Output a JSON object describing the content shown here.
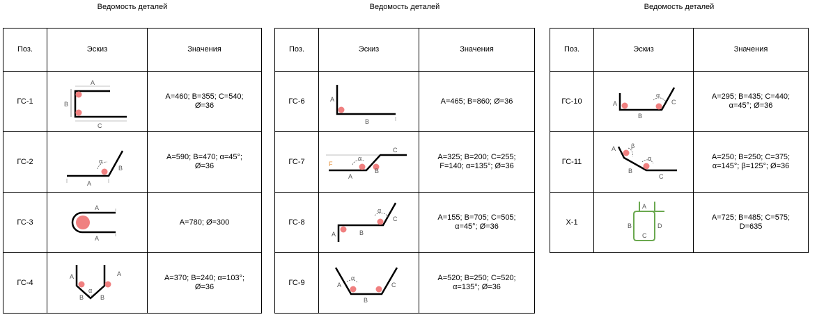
{
  "tables": [
    {
      "caption": "Ведомость деталей",
      "headers": {
        "pos": "Поз.",
        "sketch": "Эскиз",
        "values": "Значения"
      },
      "rows": [
        {
          "pos": "ГС-1",
          "value_lines": [
            "A=460;  B=355;  C=540;",
            "Ø=36"
          ],
          "labels": [
            "A",
            "B",
            "C"
          ]
        },
        {
          "pos": "ГС-2",
          "value_lines": [
            "A=590;  B=470;  α=45°;",
            "Ø=36"
          ],
          "labels": [
            "A",
            "B",
            "α"
          ]
        },
        {
          "pos": "ГС-3",
          "value_lines": [
            "A=780;  Ø=300"
          ],
          "labels": [
            "A",
            "A"
          ]
        },
        {
          "pos": "ГС-4",
          "value_lines": [
            "A=370;  B=240;  α=103°;",
            "Ø=36"
          ],
          "labels": [
            "A",
            "A",
            "B",
            "B",
            "α"
          ]
        }
      ]
    },
    {
      "caption": "Ведомость деталей",
      "headers": {
        "pos": "Поз.",
        "sketch": "Эскиз",
        "values": "Значения"
      },
      "rows": [
        {
          "pos": "ГС-6",
          "value_lines": [
            "A=465;  B=860;  Ø=36"
          ],
          "labels": [
            "A",
            "B"
          ]
        },
        {
          "pos": "ГС-7",
          "value_lines": [
            "A=325;  B=200;  C=255;",
            "F=140;  α=135°;  Ø=36"
          ],
          "labels": [
            "A",
            "B",
            "C",
            "F",
            "α"
          ]
        },
        {
          "pos": "ГС-8",
          "value_lines": [
            "A=155;  B=705;  C=505;",
            "α=45°;  Ø=36"
          ],
          "labels": [
            "A",
            "B",
            "C",
            "α"
          ]
        },
        {
          "pos": "ГС-9",
          "value_lines": [
            "A=520;  B=250;  C=520;",
            "α=135°;  Ø=36"
          ],
          "labels": [
            "A",
            "B",
            "C",
            "α"
          ]
        }
      ]
    },
    {
      "caption": "Ведомость деталей",
      "headers": {
        "pos": "Поз.",
        "sketch": "Эскиз",
        "values": "Значения"
      },
      "rows": [
        {
          "pos": "ГС-10",
          "value_lines": [
            "A=295;  B=435;  C=440;",
            "α=45°;  Ø=36"
          ],
          "labels": [
            "A",
            "B",
            "C",
            "α"
          ]
        },
        {
          "pos": "ГС-11",
          "value_lines": [
            "A=250;  B=250;  C=375;",
            "α=145°;  β=125°;  Ø=36"
          ],
          "labels": [
            "A",
            "B",
            "C",
            "α",
            "β"
          ]
        },
        {
          "pos": "Х-1",
          "value_lines": [
            "A=725;  B=485;  C=575;",
            "D=635"
          ],
          "labels": [
            "A",
            "B",
            "C",
            "D"
          ]
        }
      ]
    }
  ],
  "colors": {
    "line": "#000000",
    "dim": "#888888",
    "marker": "#f08080",
    "closed_shape": "#6aa84f",
    "label_f": "#e69138"
  }
}
